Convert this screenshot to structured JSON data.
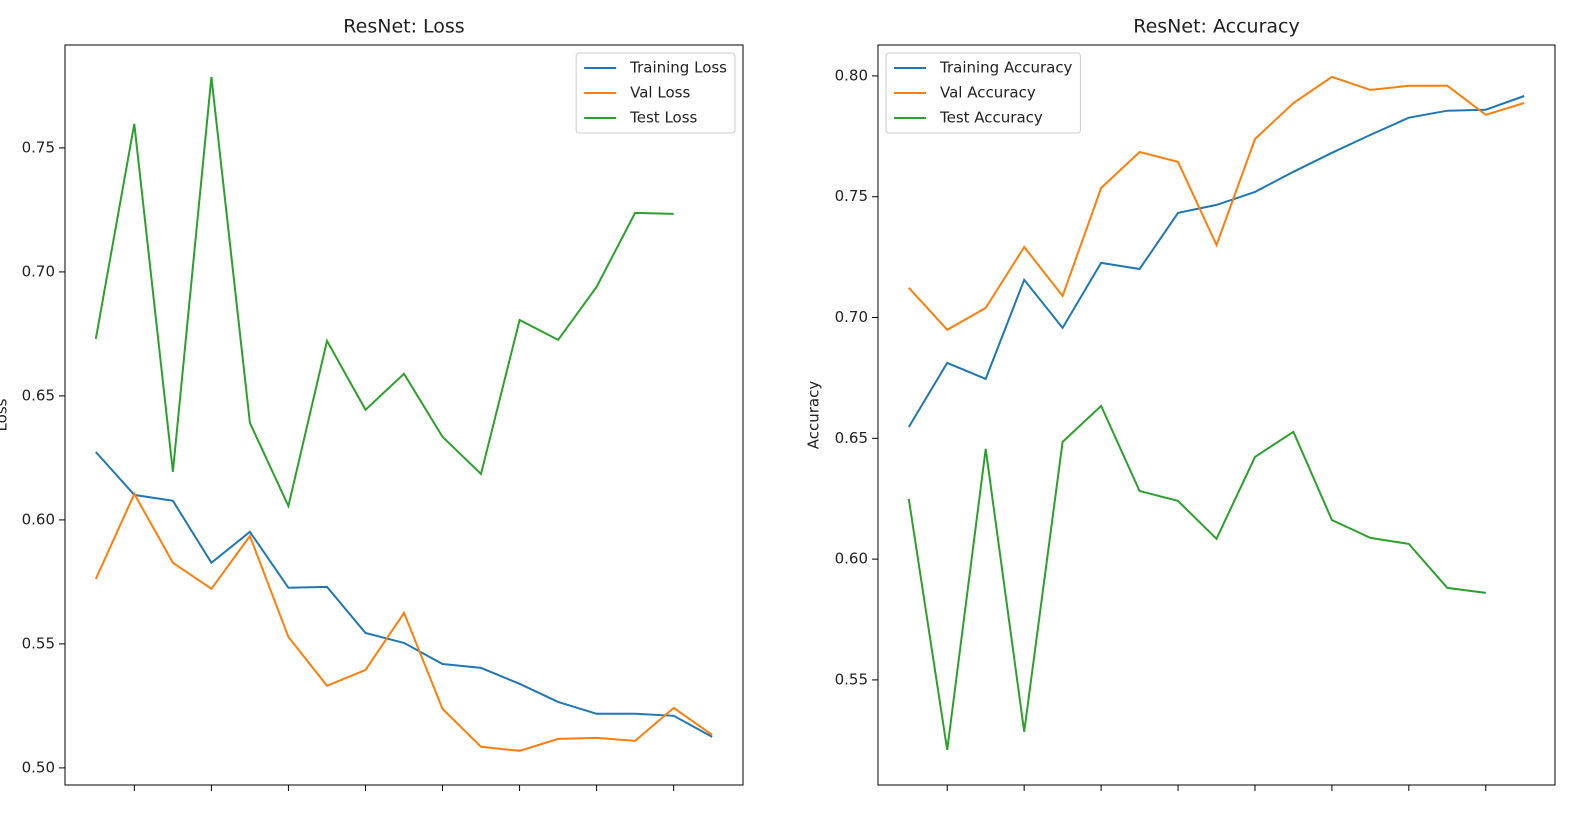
{
  "chart_data": [
    {
      "type": "line",
      "title": "ResNet: Loss",
      "y_label": "Loss",
      "x": [
        1,
        2,
        3,
        4,
        5,
        6,
        7,
        8,
        9,
        10,
        11,
        12,
        13,
        14,
        15,
        16,
        17
      ],
      "xlim": [
        0.2,
        17.8
      ],
      "xticks": [
        2,
        4,
        6,
        8,
        10,
        12,
        14,
        16
      ],
      "ylim": [
        0.4931,
        0.7915
      ],
      "yticks": [
        {
          "value": 0.5,
          "label": "0.50"
        },
        0.55,
        {
          "value": 0.6,
          "label": "0.60"
        },
        0.65,
        {
          "value": 0.7,
          "label": "0.70"
        },
        0.75
      ],
      "legend": "upper right",
      "series": [
        {
          "name": "Training Loss",
          "color": "#1f77b4",
          "values": [
            0.6274,
            0.6101,
            0.6077,
            0.5827,
            0.5952,
            0.5726,
            0.573,
            0.5544,
            0.5504,
            0.5419,
            0.5403,
            0.5339,
            0.5266,
            0.5218,
            0.5218,
            0.521,
            0.5125
          ]
        },
        {
          "name": "Val Loss",
          "color": "#ff7f0e",
          "values": [
            0.5762,
            0.6105,
            0.5827,
            0.5722,
            0.5935,
            0.5528,
            0.5331,
            0.5395,
            0.5625,
            0.5238,
            0.5085,
            0.5069,
            0.5117,
            0.5121,
            0.5109,
            0.5242,
            0.5133
          ]
        },
        {
          "name": "Test Loss",
          "color": "#2ca02c",
          "values": [
            0.673,
            0.7597,
            0.6194,
            0.7786,
            0.6391,
            0.6056,
            0.6722,
            0.6444,
            0.6589,
            0.6335,
            0.6185,
            0.6806,
            0.6726,
            0.694,
            0.7238,
            0.7234,
            null
          ]
        }
      ]
    },
    {
      "type": "line",
      "title": "ResNet: Accuracy",
      "y_label": "Accuracy",
      "x": [
        1,
        2,
        3,
        4,
        5,
        6,
        7,
        8,
        9,
        10,
        11,
        12,
        13,
        14,
        15,
        16,
        17
      ],
      "xlim": [
        0.2,
        17.8
      ],
      "xticks": [
        2,
        4,
        6,
        8,
        10,
        12,
        14,
        16
      ],
      "ylim": [
        0.5065,
        0.8128
      ],
      "yticks": [
        0.55,
        {
          "value": 0.6,
          "label": "0.60"
        },
        0.65,
        {
          "value": 0.7,
          "label": "0.70"
        },
        0.75,
        {
          "value": 0.8,
          "label": "0.80"
        }
      ],
      "legend": "upper left",
      "series": [
        {
          "name": "Training Accuracy",
          "color": "#1f77b4",
          "values": [
            0.6547,
            0.6812,
            0.6746,
            0.7156,
            0.6957,
            0.7226,
            0.7201,
            0.7433,
            0.7466,
            0.752,
            0.7603,
            0.7682,
            0.7756,
            0.7827,
            0.7856,
            0.786,
            0.7917
          ]
        },
        {
          "name": "Val Accuracy",
          "color": "#ff7f0e",
          "values": [
            0.7123,
            0.6949,
            0.704,
            0.7292,
            0.7089,
            0.7536,
            0.7685,
            0.7644,
            0.73,
            0.7739,
            0.7888,
            0.7996,
            0.7942,
            0.7959,
            0.7959,
            0.7839,
            0.7888
          ]
        },
        {
          "name": "Test Accuracy",
          "color": "#2ca02c",
          "values": [
            0.6249,
            0.521,
            0.6456,
            0.5285,
            0.6485,
            0.6634,
            0.6282,
            0.6241,
            0.6084,
            0.6423,
            0.6527,
            0.6162,
            0.6088,
            0.6063,
            0.5881,
            0.586,
            null
          ]
        }
      ]
    }
  ]
}
